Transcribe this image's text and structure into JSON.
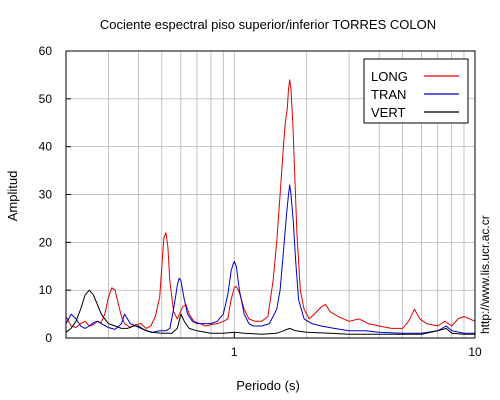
{
  "chart_data": {
    "type": "line",
    "title": "Cociente espectral piso superior/inferior  TORRES COLON",
    "xlabel": "Periodo (s)",
    "ylabel": "Amplitud",
    "xscale": "log",
    "xlim": [
      0.2,
      10
    ],
    "ylim": [
      0,
      60
    ],
    "x_tick_labels": [
      {
        "value": 1,
        "label": "1"
      },
      {
        "value": 10,
        "label": "10"
      }
    ],
    "y_tick_labels": [
      {
        "value": 0,
        "label": "0"
      },
      {
        "value": 10,
        "label": "10"
      },
      {
        "value": 20,
        "label": "20"
      },
      {
        "value": 30,
        "label": "30"
      },
      {
        "value": 40,
        "label": "40"
      },
      {
        "value": 50,
        "label": "50"
      },
      {
        "value": 60,
        "label": "60"
      }
    ],
    "grid": true,
    "legend_position": "top-right",
    "series": [
      {
        "name": "LONG",
        "color": "#e00000",
        "points": [
          [
            0.2,
            4.5
          ],
          [
            0.21,
            2.5
          ],
          [
            0.22,
            2.2
          ],
          [
            0.23,
            3.0
          ],
          [
            0.24,
            3.5
          ],
          [
            0.25,
            2.5
          ],
          [
            0.26,
            2.8
          ],
          [
            0.27,
            3.5
          ],
          [
            0.28,
            3.2
          ],
          [
            0.29,
            5.0
          ],
          [
            0.3,
            8.5
          ],
          [
            0.31,
            10.5
          ],
          [
            0.32,
            10.0
          ],
          [
            0.33,
            7.0
          ],
          [
            0.34,
            4.5
          ],
          [
            0.35,
            3.0
          ],
          [
            0.37,
            2.2
          ],
          [
            0.39,
            2.8
          ],
          [
            0.41,
            3.0
          ],
          [
            0.43,
            2.0
          ],
          [
            0.45,
            2.5
          ],
          [
            0.47,
            4.5
          ],
          [
            0.49,
            8.5
          ],
          [
            0.5,
            15.0
          ],
          [
            0.51,
            21.0
          ],
          [
            0.52,
            22.0
          ],
          [
            0.53,
            19.0
          ],
          [
            0.54,
            12.0
          ],
          [
            0.56,
            5.5
          ],
          [
            0.58,
            4.0
          ],
          [
            0.61,
            6.5
          ],
          [
            0.63,
            7.0
          ],
          [
            0.65,
            5.0
          ],
          [
            0.68,
            3.5
          ],
          [
            0.72,
            3.0
          ],
          [
            0.76,
            2.5
          ],
          [
            0.8,
            2.8
          ],
          [
            0.85,
            3.0
          ],
          [
            0.9,
            3.5
          ],
          [
            0.94,
            4.0
          ],
          [
            0.97,
            8.0
          ],
          [
            1.0,
            10.5
          ],
          [
            1.02,
            10.8
          ],
          [
            1.05,
            9.5
          ],
          [
            1.1,
            6.0
          ],
          [
            1.15,
            4.0
          ],
          [
            1.22,
            3.5
          ],
          [
            1.3,
            3.5
          ],
          [
            1.38,
            4.5
          ],
          [
            1.45,
            12.0
          ],
          [
            1.5,
            20.0
          ],
          [
            1.55,
            30.0
          ],
          [
            1.6,
            40.0
          ],
          [
            1.63,
            45.0
          ],
          [
            1.66,
            48.0
          ],
          [
            1.68,
            52.0
          ],
          [
            1.7,
            54.0
          ],
          [
            1.72,
            52.0
          ],
          [
            1.75,
            45.0
          ],
          [
            1.78,
            35.0
          ],
          [
            1.82,
            22.0
          ],
          [
            1.88,
            10.0
          ],
          [
            1.95,
            6.0
          ],
          [
            2.05,
            4.0
          ],
          [
            2.15,
            5.0
          ],
          [
            2.3,
            6.5
          ],
          [
            2.4,
            7.0
          ],
          [
            2.5,
            5.5
          ],
          [
            2.7,
            4.5
          ],
          [
            3.0,
            3.5
          ],
          [
            3.3,
            4.0
          ],
          [
            3.6,
            3.0
          ],
          [
            4.0,
            2.5
          ],
          [
            4.5,
            2.0
          ],
          [
            5.0,
            2.0
          ],
          [
            5.3,
            3.5
          ],
          [
            5.6,
            6.0
          ],
          [
            5.9,
            4.0
          ],
          [
            6.3,
            3.0
          ],
          [
            7.0,
            2.5
          ],
          [
            7.5,
            3.5
          ],
          [
            8.0,
            2.5
          ],
          [
            8.5,
            4.0
          ],
          [
            9.0,
            4.5
          ],
          [
            9.5,
            4.0
          ],
          [
            10.0,
            3.5
          ]
        ]
      },
      {
        "name": "TRAN",
        "color": "#0000cc",
        "points": [
          [
            0.2,
            3.0
          ],
          [
            0.21,
            5.0
          ],
          [
            0.22,
            4.0
          ],
          [
            0.23,
            2.5
          ],
          [
            0.24,
            2.0
          ],
          [
            0.25,
            2.5
          ],
          [
            0.26,
            3.2
          ],
          [
            0.27,
            3.5
          ],
          [
            0.28,
            3.0
          ],
          [
            0.3,
            2.2
          ],
          [
            0.32,
            1.8
          ],
          [
            0.34,
            3.0
          ],
          [
            0.35,
            5.0
          ],
          [
            0.36,
            4.0
          ],
          [
            0.37,
            3.0
          ],
          [
            0.39,
            2.5
          ],
          [
            0.41,
            2.0
          ],
          [
            0.43,
            1.5
          ],
          [
            0.46,
            1.2
          ],
          [
            0.49,
            1.5
          ],
          [
            0.52,
            1.5
          ],
          [
            0.54,
            2.0
          ],
          [
            0.56,
            6.0
          ],
          [
            0.58,
            11.0
          ],
          [
            0.59,
            12.5
          ],
          [
            0.6,
            12.0
          ],
          [
            0.62,
            8.0
          ],
          [
            0.64,
            5.0
          ],
          [
            0.67,
            3.5
          ],
          [
            0.7,
            3.0
          ],
          [
            0.75,
            3.0
          ],
          [
            0.8,
            3.0
          ],
          [
            0.85,
            3.5
          ],
          [
            0.9,
            5.0
          ],
          [
            0.94,
            9.0
          ],
          [
            0.97,
            14.0
          ],
          [
            0.99,
            15.5
          ],
          [
            1.0,
            16.0
          ],
          [
            1.02,
            15.0
          ],
          [
            1.05,
            10.0
          ],
          [
            1.1,
            5.0
          ],
          [
            1.15,
            3.0
          ],
          [
            1.2,
            2.5
          ],
          [
            1.3,
            2.5
          ],
          [
            1.4,
            3.0
          ],
          [
            1.5,
            6.0
          ],
          [
            1.55,
            10.0
          ],
          [
            1.6,
            18.0
          ],
          [
            1.65,
            26.0
          ],
          [
            1.68,
            30.0
          ],
          [
            1.7,
            32.0
          ],
          [
            1.72,
            30.0
          ],
          [
            1.76,
            24.0
          ],
          [
            1.8,
            16.0
          ],
          [
            1.85,
            8.0
          ],
          [
            1.95,
            4.0
          ],
          [
            2.1,
            3.0
          ],
          [
            2.3,
            2.5
          ],
          [
            2.6,
            2.0
          ],
          [
            3.0,
            1.5
          ],
          [
            3.5,
            1.5
          ],
          [
            4.0,
            1.2
          ],
          [
            5.0,
            1.0
          ],
          [
            6.0,
            1.0
          ],
          [
            7.0,
            1.5
          ],
          [
            7.6,
            2.5
          ],
          [
            8.0,
            1.5
          ],
          [
            9.0,
            1.0
          ],
          [
            10.0,
            1.0
          ]
        ]
      },
      {
        "name": "VERT",
        "color": "#000000",
        "points": [
          [
            0.2,
            1.2
          ],
          [
            0.21,
            2.0
          ],
          [
            0.22,
            3.5
          ],
          [
            0.23,
            6.0
          ],
          [
            0.24,
            9.0
          ],
          [
            0.25,
            10.0
          ],
          [
            0.26,
            9.0
          ],
          [
            0.27,
            7.0
          ],
          [
            0.28,
            5.0
          ],
          [
            0.29,
            4.0
          ],
          [
            0.3,
            3.0
          ],
          [
            0.32,
            2.5
          ],
          [
            0.34,
            2.0
          ],
          [
            0.36,
            2.0
          ],
          [
            0.38,
            2.5
          ],
          [
            0.4,
            2.5
          ],
          [
            0.42,
            1.8
          ],
          [
            0.45,
            1.2
          ],
          [
            0.5,
            1.0
          ],
          [
            0.55,
            1.0
          ],
          [
            0.58,
            2.0
          ],
          [
            0.6,
            5.0
          ],
          [
            0.62,
            3.5
          ],
          [
            0.65,
            2.0
          ],
          [
            0.7,
            1.5
          ],
          [
            0.8,
            1.0
          ],
          [
            0.9,
            1.0
          ],
          [
            1.0,
            1.2
          ],
          [
            1.1,
            1.0
          ],
          [
            1.3,
            0.8
          ],
          [
            1.5,
            1.0
          ],
          [
            1.6,
            1.5
          ],
          [
            1.7,
            2.0
          ],
          [
            1.8,
            1.5
          ],
          [
            2.0,
            1.2
          ],
          [
            2.5,
            1.0
          ],
          [
            3.0,
            0.8
          ],
          [
            4.0,
            0.8
          ],
          [
            5.0,
            0.8
          ],
          [
            6.0,
            0.8
          ],
          [
            7.0,
            1.5
          ],
          [
            7.6,
            2.0
          ],
          [
            8.0,
            1.0
          ],
          [
            9.0,
            0.8
          ],
          [
            10.0,
            0.8
          ]
        ]
      }
    ]
  },
  "watermark": "http://www.lis.ucr.ac.cr"
}
